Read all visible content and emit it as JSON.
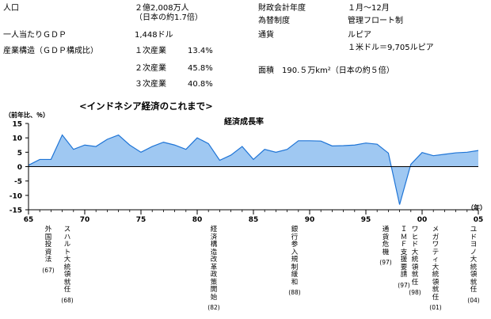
{
  "country_info": {
    "left": [
      {
        "label": "人口",
        "value": "２億2,008万人",
        "value2": "（日本の約1.7倍）"
      },
      {
        "label": "一人当たりＧＤＰ",
        "value": "1,448ドル"
      },
      {
        "label": "産業構造（ＧＤＰ構成比）",
        "sectors": [
          {
            "name": "１次産業",
            "share": "13.4%"
          },
          {
            "name": "２次産業",
            "share": "45.8%"
          },
          {
            "name": "３次産業",
            "share": "40.8%"
          }
        ]
      }
    ],
    "right": [
      {
        "label": "財政会計年度",
        "value": "１月～12月"
      },
      {
        "label": "為替制度",
        "value": "管理フロート制"
      },
      {
        "label": "通貨",
        "value": "ルピア",
        "value2": "１米ドル＝9,705ルピア"
      }
    ],
    "area": "面積　190.５万km²（日本の約５倍）"
  },
  "chart_data": {
    "type": "area",
    "title": "<インドネシア経済のこれまで>",
    "series_title": "経済成長率",
    "ylabel": "（前年比、％）",
    "xunit": "（年）",
    "ylim": [
      -15,
      15
    ],
    "yticks": [
      15,
      10,
      5,
      0,
      -5,
      -10,
      -15
    ],
    "xlim": [
      1965,
      2005
    ],
    "xticks": [
      {
        "x": 1965,
        "label": "65"
      },
      {
        "x": 1970,
        "label": "70"
      },
      {
        "x": 1975,
        "label": "75"
      },
      {
        "x": 1980,
        "label": "80"
      },
      {
        "x": 1985,
        "label": "85"
      },
      {
        "x": 1990,
        "label": "90"
      },
      {
        "x": 1995,
        "label": "95"
      },
      {
        "x": 2000,
        "label": "00"
      },
      {
        "x": 2005,
        "label": "05"
      }
    ],
    "grid": false,
    "colors": {
      "fill": "#9fc8f2",
      "line": "#1e74d6",
      "axis": "#000000"
    },
    "years": [
      1965,
      1966,
      1967,
      1968,
      1969,
      1970,
      1971,
      1972,
      1973,
      1974,
      1975,
      1976,
      1977,
      1978,
      1979,
      1980,
      1981,
      1982,
      1983,
      1984,
      1985,
      1986,
      1987,
      1988,
      1989,
      1990,
      1991,
      1992,
      1993,
      1994,
      1995,
      1996,
      1997,
      1998,
      1999,
      2000,
      2001,
      2002,
      2003,
      2004,
      2005
    ],
    "growth": [
      0.5,
      2.5,
      2.5,
      11.0,
      6.0,
      7.5,
      7.0,
      9.5,
      11.0,
      7.5,
      5.0,
      7.0,
      8.5,
      7.5,
      6.0,
      10.0,
      8.0,
      2.2,
      4.0,
      7.0,
      2.5,
      6.0,
      5.0,
      6.0,
      9.0,
      9.0,
      8.9,
      7.2,
      7.3,
      7.5,
      8.2,
      7.8,
      4.7,
      -13.2,
      0.8,
      4.9,
      3.8,
      4.3,
      4.8,
      5.0,
      5.6
    ],
    "events": [
      {
        "label": "外国投資法",
        "year_label": "(67)",
        "year": 1967
      },
      {
        "label": "スハルト大統領就任",
        "year_label": "(68)",
        "year": 1968
      },
      {
        "label": "経済構造改革政策開始",
        "year_label": "(82)",
        "year": 1982
      },
      {
        "label": "銀行参入規制緩和",
        "year_label": "(88)",
        "year": 1988
      },
      {
        "label": "通貨危機",
        "year_label": "(97)",
        "year": 1997
      },
      {
        "label": "ＩＭＦ支援要請",
        "year_label": "(97)",
        "year": 1997
      },
      {
        "label": "ワヒド大統領就任",
        "year_label": "(98)",
        "year": 1998
      },
      {
        "label": "メガワティ大統領就任",
        "year_label": "(01)",
        "year": 2001
      },
      {
        "label": "ユドヨノ大統領就任",
        "year_label": "(04)",
        "year": 2004
      }
    ]
  }
}
